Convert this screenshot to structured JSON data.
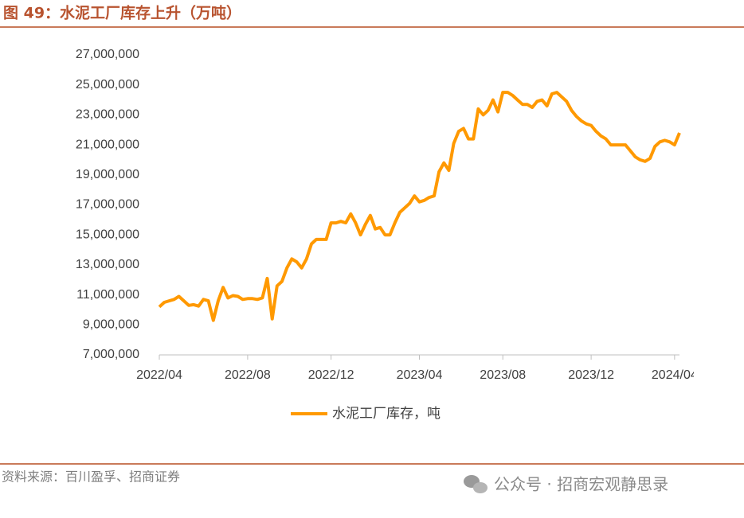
{
  "chart_data": {
    "type": "line",
    "title": "图 49：水泥工厂库存上升（万吨）",
    "source": "资料来源：百川盈孚、招商证券",
    "watermark": "公众号 · 招商宏观静思录",
    "categories": [
      "2022/04",
      null,
      null,
      null,
      null,
      null,
      null,
      null,
      null,
      null,
      null,
      null,
      null,
      null,
      null,
      null,
      null,
      null,
      "2022/08",
      null,
      null,
      null,
      null,
      null,
      null,
      null,
      null,
      null,
      null,
      null,
      null,
      null,
      null,
      null,
      null,
      "2022/12",
      null,
      null,
      null,
      null,
      null,
      null,
      null,
      null,
      null,
      null,
      null,
      null,
      null,
      null,
      null,
      null,
      null,
      "2023/04",
      null,
      null,
      null,
      null,
      null,
      null,
      null,
      null,
      null,
      null,
      null,
      null,
      null,
      null,
      null,
      null,
      "2023/08",
      null,
      null,
      null,
      null,
      null,
      null,
      null,
      null,
      null,
      null,
      null,
      null,
      null,
      null,
      null,
      null,
      null,
      "2023/12",
      null,
      null,
      null,
      null,
      null,
      null,
      null,
      null,
      null,
      null,
      null,
      null,
      null,
      null,
      null,
      null,
      "2024/04",
      null
    ],
    "series": [
      {
        "name": "水泥工厂库存，吨",
        "color": "#ff9900",
        "values": [
          10200000,
          10500000,
          10600000,
          10700000,
          10900000,
          10600000,
          10300000,
          10350000,
          10250000,
          10700000,
          10600000,
          9300000,
          10600000,
          11500000,
          10800000,
          10950000,
          10900000,
          10700000,
          10750000,
          10750000,
          10700000,
          10800000,
          12100000,
          9400000,
          11600000,
          11900000,
          12800000,
          13400000,
          13200000,
          12800000,
          13400000,
          14400000,
          14700000,
          14700000,
          14700000,
          15800000,
          15800000,
          15900000,
          15800000,
          16400000,
          15800000,
          15000000,
          15700000,
          16300000,
          15400000,
          15500000,
          15000000,
          15000000,
          15800000,
          16500000,
          16800000,
          17100000,
          17600000,
          17200000,
          17300000,
          17500000,
          17600000,
          19200000,
          19800000,
          19300000,
          21100000,
          21900000,
          22100000,
          21400000,
          21400000,
          23400000,
          23000000,
          23300000,
          24000000,
          23200000,
          24500000,
          24500000,
          24300000,
          24000000,
          23700000,
          23700000,
          23500000,
          23900000,
          24000000,
          23600000,
          24400000,
          24500000,
          24200000,
          23900000,
          23300000,
          22900000,
          22600000,
          22400000,
          22300000,
          21900000,
          21600000,
          21400000,
          21000000,
          21000000,
          21000000,
          21000000,
          20600000,
          20200000,
          20000000,
          19900000,
          20100000,
          20900000,
          21200000,
          21300000,
          21200000,
          21000000,
          21800000
        ]
      }
    ],
    "ylim": [
      7000000,
      27000000
    ],
    "yticks": [
      {
        "value": 7000000,
        "label": "7,000,000"
      },
      {
        "value": 9000000,
        "label": "9,000,000"
      },
      {
        "value": 11000000,
        "label": "11,000,000"
      },
      {
        "value": 13000000,
        "label": "13,000,000"
      },
      {
        "value": 15000000,
        "label": "15,000,000"
      },
      {
        "value": 17000000,
        "label": "17,000,000"
      },
      {
        "value": 19000000,
        "label": "19,000,000"
      },
      {
        "value": 21000000,
        "label": "21,000,000"
      },
      {
        "value": 23000000,
        "label": "23,000,000"
      },
      {
        "value": 25000000,
        "label": "25,000,000"
      },
      {
        "value": 27000000,
        "label": "27,000,000"
      }
    ],
    "grid": false,
    "legend": "bottom"
  }
}
